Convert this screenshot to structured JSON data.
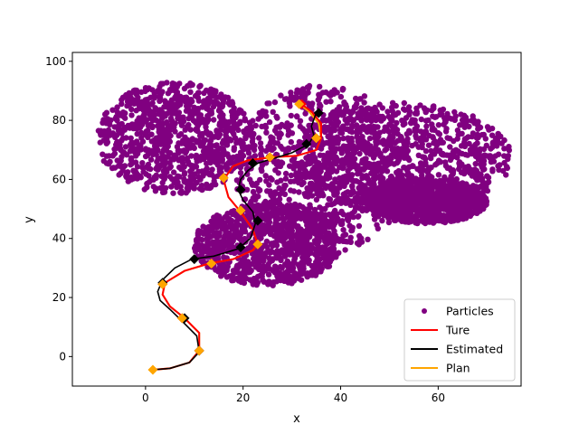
{
  "chart_data": {
    "type": "scatter",
    "title": "",
    "xlabel": "x",
    "ylabel": "y",
    "xlim": [
      -15,
      77
    ],
    "ylim": [
      -10,
      103
    ],
    "xticks": [
      0,
      20,
      40,
      60
    ],
    "yticks": [
      0,
      20,
      40,
      60,
      80,
      100
    ],
    "xtick_labels": [
      "0",
      "20",
      "40",
      "60"
    ],
    "ytick_labels": [
      "0",
      "20",
      "40",
      "60",
      "80",
      "100"
    ],
    "grid": false,
    "legend_position": "lower-right",
    "legend": [
      {
        "label": "Particles",
        "kind": "marker",
        "color": "#800080"
      },
      {
        "label": "Ture",
        "kind": "line",
        "color": "#ff0000"
      },
      {
        "label": "Estimated",
        "kind": "line",
        "color": "#000000"
      },
      {
        "label": "Plan",
        "kind": "line",
        "color": "#ffa500"
      }
    ],
    "particles": {
      "name": "Particles",
      "color": "#800080",
      "regions": [
        {
          "x_range": [
            18,
            54
          ],
          "y_range": [
            35,
            92
          ]
        },
        {
          "x_range": [
            10,
            40
          ],
          "y_range": [
            24,
            52
          ]
        },
        {
          "x_range": [
            30,
            75
          ],
          "y_range": [
            48,
            86
          ]
        },
        {
          "x_range": [
            -10,
            22
          ],
          "y_range": [
            55,
            93
          ]
        },
        {
          "x_range": [
            45,
            70
          ],
          "y_range": [
            45,
            60
          ]
        }
      ]
    },
    "series": [
      {
        "name": "Ture",
        "color": "#ff0000",
        "x": [
          1.5,
          5,
          9,
          11,
          11,
          8,
          5,
          3.5,
          4,
          8,
          13,
          18,
          22,
          23,
          22,
          19.5,
          17,
          16,
          18,
          21,
          26,
          31,
          35,
          36,
          36,
          34,
          32
        ],
        "y": [
          -4.5,
          -4,
          -2,
          2,
          8,
          13,
          17,
          21,
          25,
          29,
          31.5,
          33,
          36,
          38,
          43,
          49,
          54,
          60,
          64.5,
          66.5,
          67.5,
          68,
          70,
          74,
          79,
          83,
          85.5
        ],
        "markers": [
          [
            11,
            2
          ],
          [
            7.5,
            13
          ],
          [
            3.5,
            24.5
          ],
          [
            13.5,
            31.5
          ],
          [
            23,
            38
          ],
          [
            19.5,
            49.5
          ],
          [
            16,
            60.5
          ],
          [
            25.5,
            67.5
          ],
          [
            35,
            74
          ],
          [
            32,
            85.5
          ]
        ]
      },
      {
        "name": "Estimated",
        "color": "#000000",
        "x": [
          1.5,
          5,
          9,
          11,
          10.5,
          7.5,
          5,
          3,
          2.5,
          3.5,
          6,
          9.5,
          14,
          19,
          21.5,
          22.5,
          22,
          20,
          19,
          19.5,
          21,
          23,
          26,
          30,
          33.5,
          34.5,
          34,
          35,
          35.5
        ],
        "y": [
          -4.5,
          -4,
          -2,
          1.5,
          7,
          12,
          16,
          19,
          22,
          26,
          30,
          33,
          34,
          36.5,
          40,
          45,
          49,
          53,
          56.5,
          60,
          63,
          65.5,
          67,
          69,
          72,
          75,
          78,
          82.5,
          84
        ],
        "markers": [
          [
            11,
            2
          ],
          [
            8,
            13
          ],
          [
            3.5,
            25
          ],
          [
            10,
            33
          ],
          [
            19.5,
            37
          ],
          [
            23,
            46
          ],
          [
            19.5,
            56.5
          ],
          [
            22,
            65.5
          ],
          [
            33,
            72
          ],
          [
            35.5,
            82.5
          ]
        ]
      },
      {
        "name": "Plan",
        "color": "#ffa500",
        "x": [
          1.5,
          5,
          9,
          11,
          11,
          8,
          5,
          3.5,
          4,
          8,
          13,
          18,
          22,
          23,
          22,
          19.5,
          17,
          16,
          18,
          21,
          26,
          31,
          35,
          36,
          35.5,
          33.5,
          31.5
        ],
        "y": [
          -4.5,
          -4,
          -2,
          2,
          8,
          13,
          17,
          21,
          25,
          29,
          31.5,
          33,
          36,
          38,
          43,
          49,
          54,
          60,
          64.5,
          66.5,
          67.5,
          68,
          70,
          74,
          79,
          83,
          85.5
        ],
        "markers": [
          [
            1.5,
            -4.5
          ],
          [
            11,
            2
          ],
          [
            7.5,
            13
          ],
          [
            3.5,
            24.5
          ],
          [
            13.5,
            31.5
          ],
          [
            23,
            38
          ],
          [
            19.5,
            49.5
          ],
          [
            16,
            60.5
          ],
          [
            25.5,
            67.5
          ],
          [
            35,
            74
          ],
          [
            31.5,
            85.5
          ]
        ]
      }
    ]
  }
}
